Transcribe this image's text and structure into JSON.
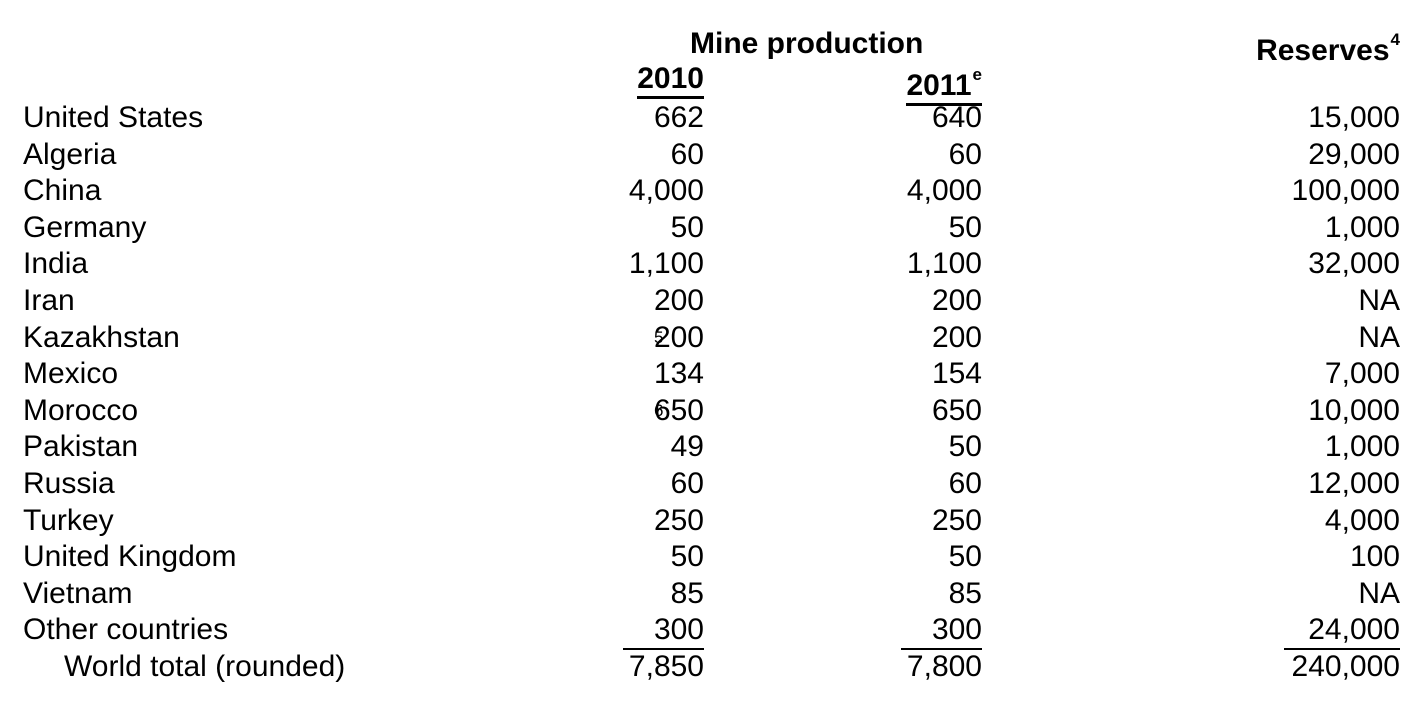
{
  "headers": {
    "mine_production": "Mine production",
    "reserves": "Reserves",
    "reserves_note": "4",
    "year_2010": "2010",
    "year_2011": "2011",
    "year_2011_note": "e"
  },
  "rows": [
    {
      "country": "United States",
      "p2010": "662",
      "p2010_note": "",
      "p2011": "640",
      "reserves": "15,000"
    },
    {
      "country": "Algeria",
      "p2010": "60",
      "p2010_note": "",
      "p2011": "60",
      "reserves": "29,000"
    },
    {
      "country": "China",
      "p2010": "4,000",
      "p2010_note": "",
      "p2011": "4,000",
      "reserves": "100,000"
    },
    {
      "country": "Germany",
      "p2010": "50",
      "p2010_note": "",
      "p2011": "50",
      "reserves": "1,000"
    },
    {
      "country": "India",
      "p2010": "1,100",
      "p2010_note": "",
      "p2011": "1,100",
      "reserves": "32,000"
    },
    {
      "country": "Iran",
      "p2010": "200",
      "p2010_note": "",
      "p2011": "200",
      "reserves": "NA"
    },
    {
      "country": "Kazakhstan",
      "p2010": "200",
      "p2010_note": "5",
      "p2011": "200",
      "reserves": "NA"
    },
    {
      "country": "Mexico",
      "p2010": "134",
      "p2010_note": "",
      "p2011": "154",
      "reserves": "7,000"
    },
    {
      "country": "Morocco",
      "p2010": "650",
      "p2010_note": "6",
      "p2011": "650",
      "reserves": "10,000"
    },
    {
      "country": "Pakistan",
      "p2010": "49",
      "p2010_note": "",
      "p2011": "50",
      "reserves": "1,000"
    },
    {
      "country": "Russia",
      "p2010": "60",
      "p2010_note": "",
      "p2011": "60",
      "reserves": "12,000"
    },
    {
      "country": "Turkey",
      "p2010": "250",
      "p2010_note": "",
      "p2011": "250",
      "reserves": "4,000"
    },
    {
      "country": "United Kingdom",
      "p2010": "50",
      "p2010_note": "",
      "p2011": "50",
      "reserves": "100"
    },
    {
      "country": "Vietnam",
      "p2010": "85",
      "p2010_note": "",
      "p2011": "85",
      "reserves": "NA"
    },
    {
      "country": "Other countries",
      "p2010": "300",
      "p2010_note": "",
      "p2011": "300",
      "reserves": "24,000"
    }
  ],
  "total": {
    "country": "World total (rounded)",
    "p2010": "7,850",
    "p2011": "7,800",
    "reserves": "240,000"
  }
}
